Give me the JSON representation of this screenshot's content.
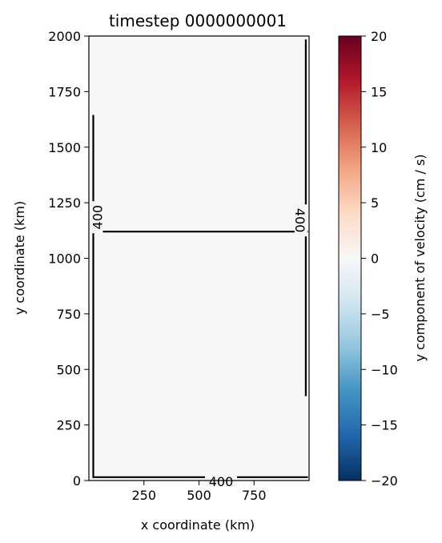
{
  "chart_data": {
    "type": "heatmap",
    "title": "timestep 0000000001",
    "xlabel": "x coordinate (km)",
    "ylabel": "y coordinate (km)",
    "xlim": [
      0,
      1000
    ],
    "ylim": [
      0,
      2000
    ],
    "x_ticks": [
      250,
      500,
      750
    ],
    "y_ticks": [
      0,
      250,
      500,
      750,
      1000,
      1250,
      1500,
      1750,
      2000
    ],
    "field_value": 0,
    "colorbar": {
      "label": "y component of velocity (cm / s)",
      "colormap": "RdBu_r",
      "range": [
        -20,
        20
      ],
      "ticks": [
        -20,
        -15,
        -10,
        -5,
        0,
        5,
        10,
        15,
        20
      ],
      "colors": [
        "#053061",
        "#2166ac",
        "#4393c3",
        "#92c5de",
        "#d1e5f0",
        "#f7f7f7",
        "#fddbc7",
        "#f4a582",
        "#d6604d",
        "#b2182b",
        "#67001f"
      ]
    },
    "contours": [
      {
        "label": "400",
        "label_position": "bottom",
        "path": [
          [
            20,
            1645
          ],
          [
            20,
            15
          ],
          [
            995,
            15
          ]
        ]
      },
      {
        "label": "400",
        "label_position": "left",
        "path": [
          [
            20,
            1120
          ],
          [
            995,
            1120
          ]
        ]
      },
      {
        "label": "400",
        "label_position": "right",
        "path": [
          [
            985,
            1985
          ],
          [
            985,
            380
          ]
        ]
      }
    ]
  }
}
